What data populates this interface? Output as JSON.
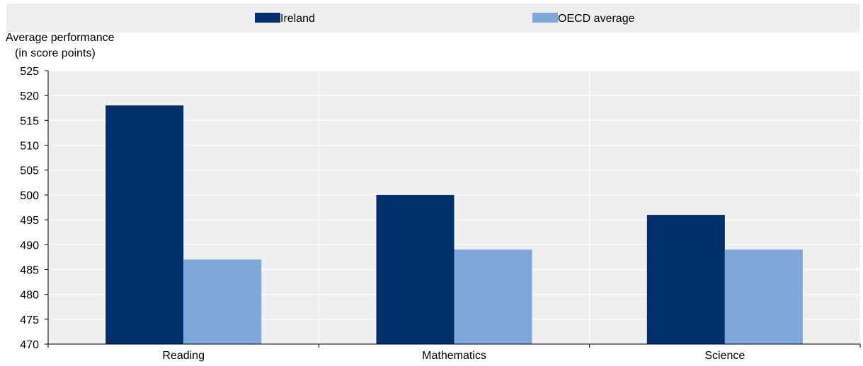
{
  "chart_data": {
    "type": "bar",
    "title": "",
    "xlabel": "",
    "ylabel": "Average performance",
    "ylabel_sub": "(in score points)",
    "categories": [
      "Reading",
      "Mathematics",
      "Science"
    ],
    "series": [
      {
        "name": "Ireland",
        "values": [
          518,
          500,
          496
        ],
        "color": "#002F6C"
      },
      {
        "name": "OECD average",
        "values": [
          487,
          489,
          489
        ],
        "color": "#7FA7D9"
      }
    ],
    "ylim": [
      470,
      525
    ],
    "yticks": [
      470,
      475,
      480,
      485,
      490,
      495,
      500,
      505,
      510,
      515,
      520,
      525
    ],
    "grid": true,
    "legend_position": "top",
    "plot_background": "#EFEFEF",
    "grid_color": "#FFFFFF"
  }
}
